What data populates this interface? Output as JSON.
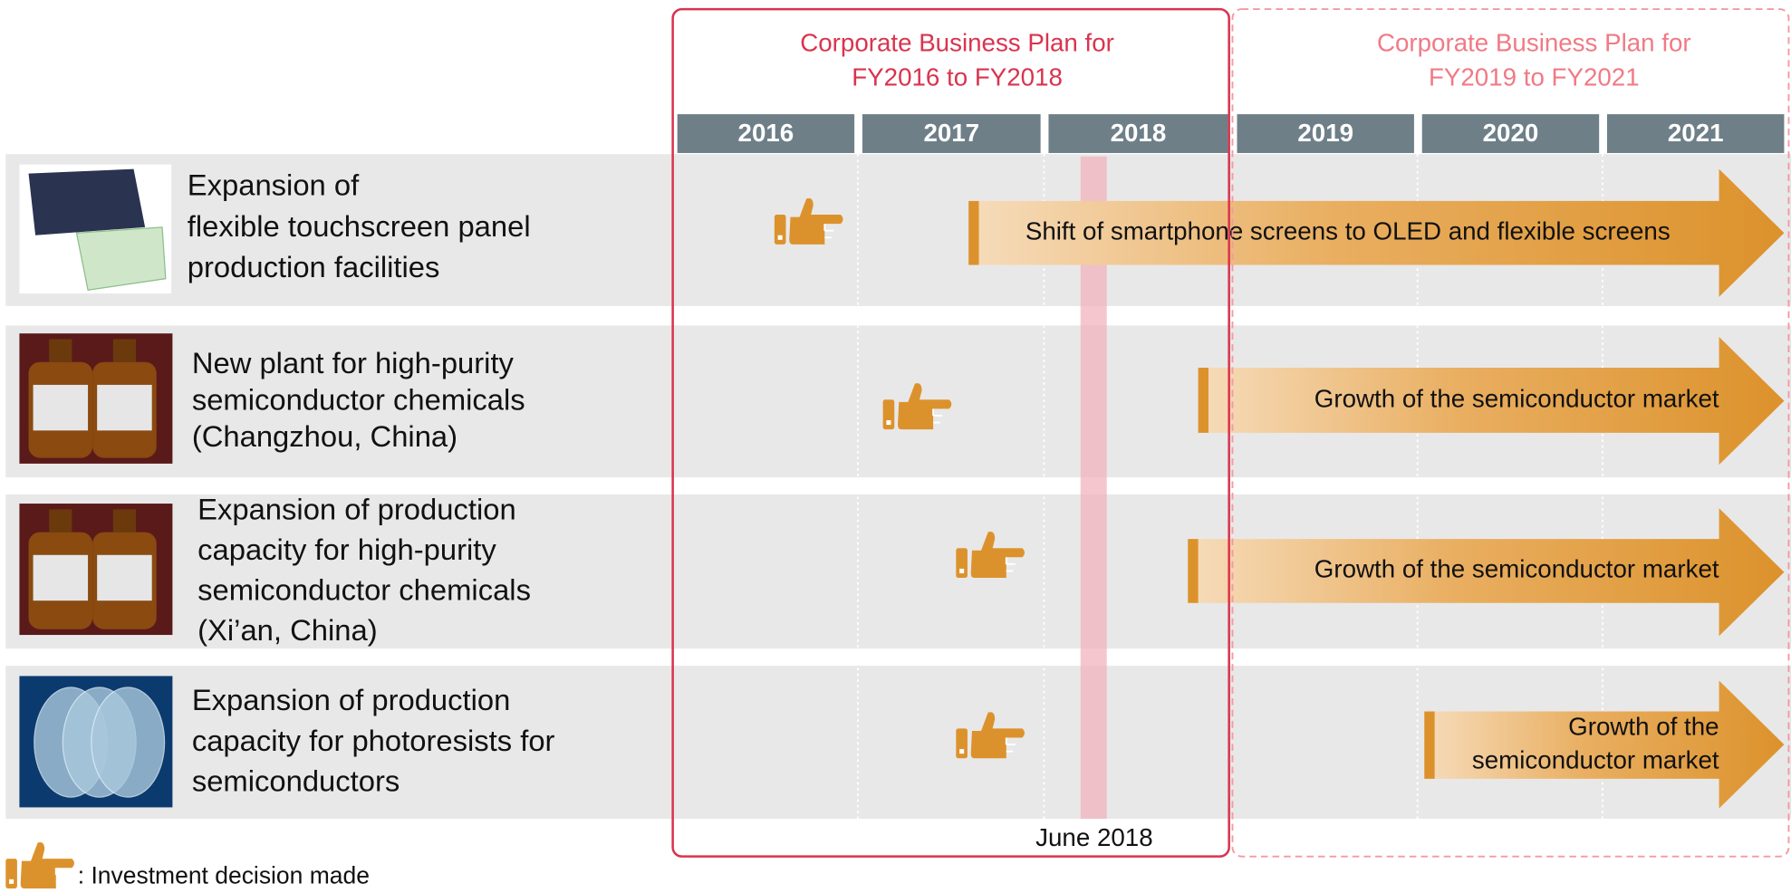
{
  "plans": [
    {
      "title": [
        "Corporate Business Plan for",
        "FY2016 to FY2018"
      ]
    },
    {
      "title": [
        "Corporate Business Plan for",
        "FY2019 to FY2021"
      ]
    }
  ],
  "years": [
    "2016",
    "2017",
    "2018",
    "2019",
    "2020",
    "2021"
  ],
  "rows": [
    {
      "label": [
        "Expansion of",
        "flexible touchscreen panel",
        "production facilities"
      ],
      "arrow": [
        "Shift of smartphone screens to OLED and flexible screens"
      ]
    },
    {
      "label": [
        "New plant for high-purity",
        "semiconductor chemicals",
        "(Changzhou, China)"
      ],
      "arrow": [
        "Growth of the semiconductor market"
      ]
    },
    {
      "label": [
        "Expansion of production",
        "capacity for high-purity",
        "semiconductor chemicals",
        "(Xi’an, China)"
      ],
      "arrow": [
        "Growth of the semiconductor market"
      ]
    },
    {
      "label": [
        "Expansion of production",
        "capacity for photoresists for",
        "semiconductors"
      ],
      "arrow": [
        "Growth of the",
        "semiconductor market"
      ]
    }
  ],
  "marker": "June 2018",
  "legend": ": Investment decision made"
}
